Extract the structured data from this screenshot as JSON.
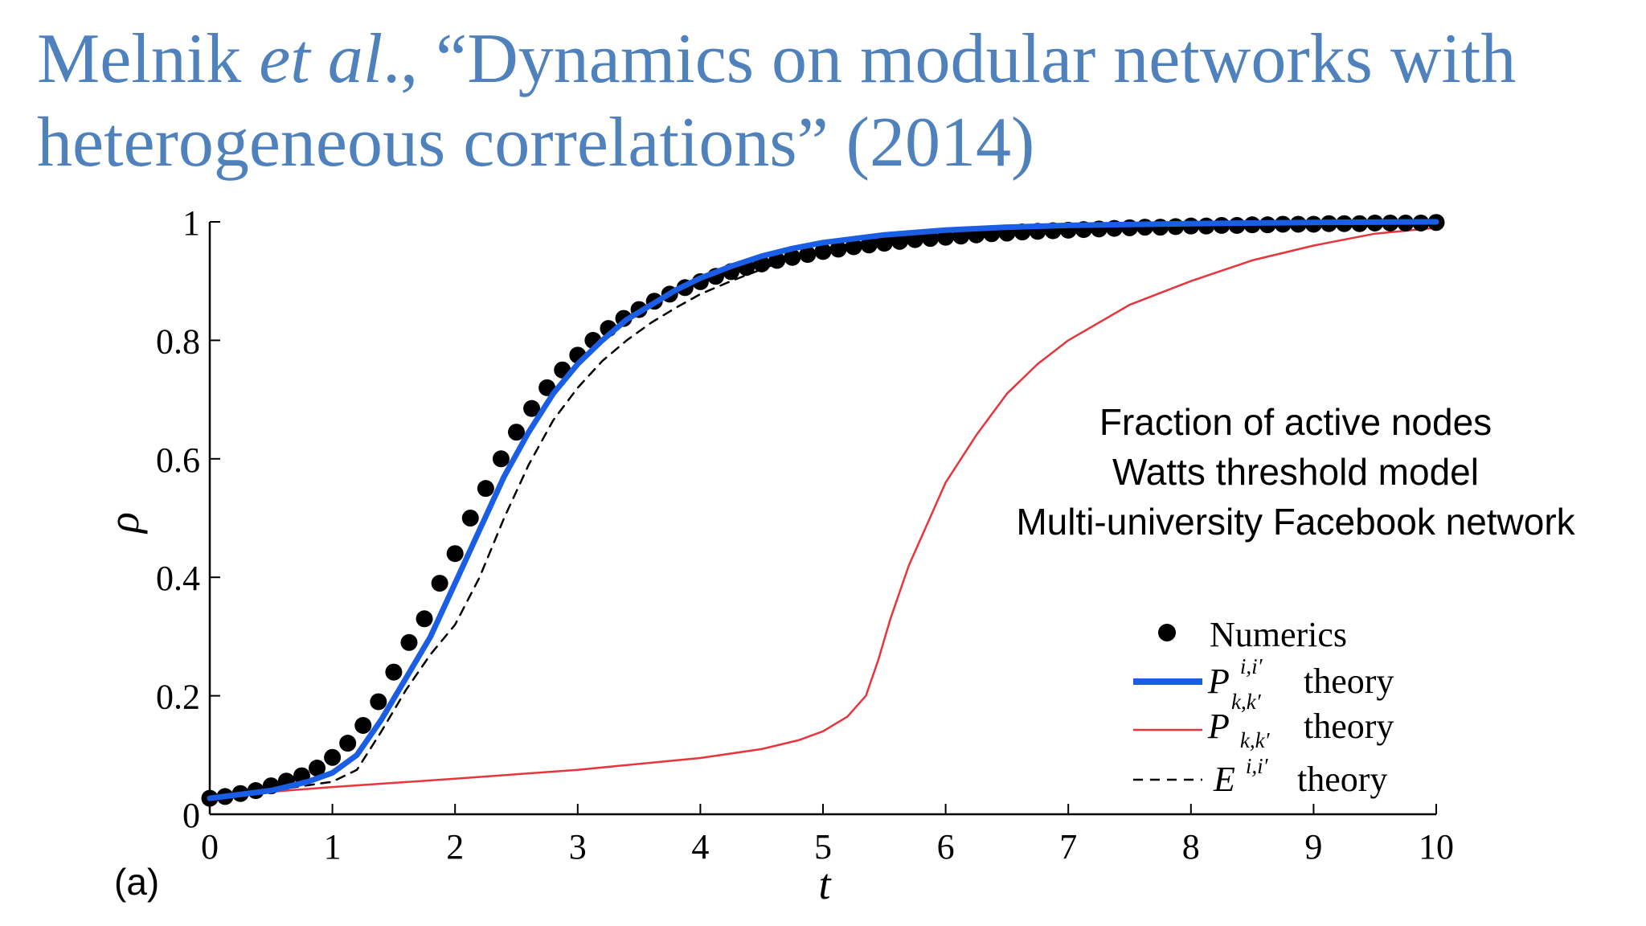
{
  "slide": {
    "title_author": "Melnik",
    "title_etal": "et al",
    "title_rest_line1": "., “Dynamics on modular networks with",
    "title_line2": "heterogeneous correlations” (2014)"
  },
  "annotation": {
    "line1": "Fraction of active nodes",
    "line2": "Watts threshold model",
    "line3": "Multi-university Facebook network"
  },
  "panel_label": "(a)",
  "chart_data": {
    "type": "line",
    "xlabel": "t",
    "ylabel": "ρ",
    "xlim": [
      0,
      10
    ],
    "ylim": [
      0,
      1
    ],
    "x_ticks": [
      "0",
      "1",
      "2",
      "3",
      "4",
      "5",
      "6",
      "7",
      "8",
      "9",
      "10"
    ],
    "y_ticks": [
      "0",
      "0.2",
      "0.4",
      "0.6",
      "0.8",
      "1"
    ],
    "legend_position": "bottom-right",
    "colors": {
      "numerics": "#000000",
      "pkk_ii": "#1a5ee6",
      "pkk": "#e8343a",
      "e_ii": "#000000"
    },
    "legend": {
      "numerics": "Numerics",
      "pkk_ii_sym": "P",
      "pkk_ii_sup": "i,i′",
      "pkk_ii_sub": "k,k′",
      "pkk_sym": "P",
      "pkk_sub": "k,k′",
      "e_sym": "E",
      "e_sup": "i,i′",
      "theory": "theory"
    },
    "series": [
      {
        "key": "numerics",
        "style": "markers",
        "x": [
          0,
          0.125,
          0.25,
          0.375,
          0.5,
          0.625,
          0.75,
          0.875,
          1,
          1.125,
          1.25,
          1.375,
          1.5,
          1.625,
          1.75,
          1.875,
          2,
          2.125,
          2.25,
          2.375,
          2.5,
          2.625,
          2.75,
          2.875,
          3,
          3.125,
          3.25,
          3.375,
          3.5,
          3.625,
          3.75,
          3.875,
          4,
          4.125,
          4.25,
          4.375,
          4.5,
          4.625,
          4.75,
          4.875,
          5,
          5.125,
          5.25,
          5.375,
          5.5,
          5.625,
          5.75,
          5.875,
          6,
          6.125,
          6.25,
          6.375,
          6.5,
          6.625,
          6.75,
          6.875,
          7,
          7.125,
          7.25,
          7.375,
          7.5,
          7.625,
          7.75,
          7.875,
          8,
          8.125,
          8.25,
          8.375,
          8.5,
          8.625,
          8.75,
          8.875,
          9,
          9.125,
          9.25,
          9.375,
          9.5,
          9.625,
          9.75,
          9.875,
          10
        ],
        "y": [
          0.027,
          0.03,
          0.035,
          0.04,
          0.048,
          0.056,
          0.065,
          0.078,
          0.096,
          0.12,
          0.15,
          0.19,
          0.24,
          0.29,
          0.33,
          0.39,
          0.44,
          0.5,
          0.55,
          0.6,
          0.645,
          0.685,
          0.72,
          0.75,
          0.775,
          0.8,
          0.82,
          0.837,
          0.852,
          0.866,
          0.878,
          0.889,
          0.899,
          0.908,
          0.916,
          0.923,
          0.929,
          0.935,
          0.94,
          0.945,
          0.95,
          0.954,
          0.958,
          0.961,
          0.964,
          0.967,
          0.97,
          0.972,
          0.974,
          0.976,
          0.978,
          0.98,
          0.981,
          0.983,
          0.984,
          0.985,
          0.986,
          0.987,
          0.988,
          0.989,
          0.99,
          0.991,
          0.991,
          0.992,
          0.993,
          0.993,
          0.994,
          0.994,
          0.995,
          0.995,
          0.996,
          0.996,
          0.996,
          0.997,
          0.997,
          0.997,
          0.998,
          0.998,
          0.998,
          0.998,
          0.999
        ]
      },
      {
        "key": "pkk_ii",
        "style": "thick",
        "x": [
          0,
          0.5,
          0.8,
          1.0,
          1.2,
          1.4,
          1.6,
          1.8,
          2.0,
          2.2,
          2.4,
          2.6,
          2.8,
          3.0,
          3.2,
          3.4,
          3.6,
          3.8,
          4.0,
          4.25,
          4.5,
          4.75,
          5.0,
          5.5,
          6.0,
          6.5,
          7.0,
          8.0,
          9.0,
          10.0
        ],
        "y": [
          0.027,
          0.04,
          0.055,
          0.07,
          0.1,
          0.16,
          0.23,
          0.3,
          0.39,
          0.48,
          0.57,
          0.645,
          0.71,
          0.76,
          0.8,
          0.835,
          0.86,
          0.885,
          0.905,
          0.925,
          0.942,
          0.955,
          0.965,
          0.978,
          0.986,
          0.991,
          0.994,
          0.997,
          0.999,
          1.0
        ]
      },
      {
        "key": "pkk",
        "style": "thin",
        "x": [
          0,
          0.5,
          1.0,
          2.0,
          3.0,
          4.0,
          4.5,
          4.8,
          5.0,
          5.2,
          5.35,
          5.45,
          5.55,
          5.7,
          5.85,
          6.0,
          6.25,
          6.5,
          6.75,
          7.0,
          7.5,
          8.0,
          8.5,
          9.0,
          9.5,
          10.0
        ],
        "y": [
          0.03,
          0.038,
          0.046,
          0.06,
          0.075,
          0.095,
          0.11,
          0.125,
          0.14,
          0.165,
          0.2,
          0.26,
          0.33,
          0.42,
          0.49,
          0.56,
          0.64,
          0.71,
          0.76,
          0.8,
          0.86,
          0.9,
          0.935,
          0.96,
          0.98,
          0.99
        ]
      },
      {
        "key": "e_ii",
        "style": "dashed",
        "x": [
          0,
          0.5,
          1.0,
          1.2,
          1.4,
          1.6,
          1.8,
          2.0,
          2.2,
          2.4,
          2.6,
          2.8,
          3.0,
          3.2,
          3.4,
          3.6,
          3.8,
          4.0,
          4.25,
          4.5,
          4.75,
          5.0,
          5.5,
          6.0,
          6.5,
          7.0,
          8.0,
          9.0,
          10.0
        ],
        "y": [
          0.025,
          0.04,
          0.055,
          0.075,
          0.14,
          0.21,
          0.27,
          0.32,
          0.4,
          0.5,
          0.59,
          0.665,
          0.72,
          0.765,
          0.8,
          0.83,
          0.855,
          0.878,
          0.9,
          0.92,
          0.94,
          0.955,
          0.972,
          0.983,
          0.99,
          0.994,
          0.997,
          0.999,
          1.0
        ]
      }
    ]
  }
}
